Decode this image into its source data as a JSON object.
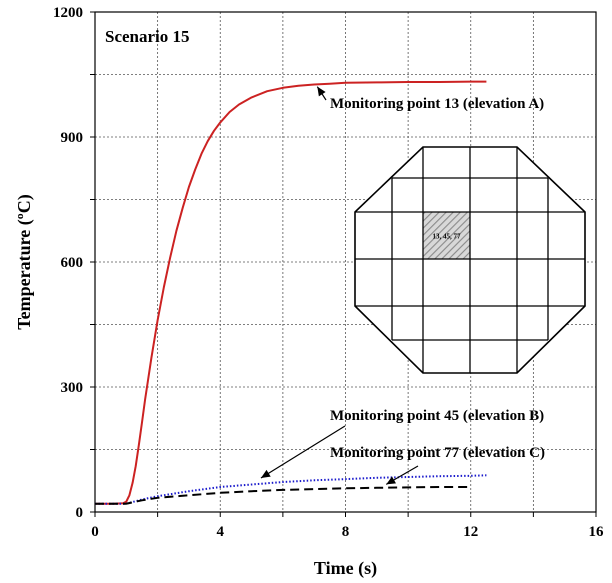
{
  "chart_data": {
    "type": "line",
    "title": "Scenario 15",
    "xlabel": "Time (s)",
    "ylabel": "Temperature (ºC)",
    "xlim": [
      0,
      16
    ],
    "ylim": [
      0,
      1200
    ],
    "xticks": [
      0,
      4,
      8,
      12,
      16
    ],
    "yticks": [
      0,
      300,
      600,
      900,
      1200
    ],
    "grid": true,
    "series": [
      {
        "name": "Monitoring point 13 (elevation A)",
        "color": "#cc2222",
        "style": "solid",
        "x": [
          0,
          0.6,
          0.9,
          1.0,
          1.1,
          1.2,
          1.3,
          1.4,
          1.5,
          1.6,
          1.8,
          2.0,
          2.2,
          2.4,
          2.6,
          2.8,
          3.0,
          3.2,
          3.4,
          3.6,
          3.8,
          4.0,
          4.3,
          4.6,
          5.0,
          5.5,
          6.0,
          6.5,
          7.0,
          7.5,
          8.0,
          9.0,
          10.0,
          11.0,
          12.0,
          12.5
        ],
        "y": [
          20,
          20,
          21,
          25,
          40,
          70,
          110,
          160,
          215,
          270,
          370,
          460,
          540,
          610,
          675,
          730,
          780,
          822,
          860,
          890,
          915,
          935,
          960,
          978,
          995,
          1010,
          1018,
          1023,
          1026,
          1028,
          1030,
          1031,
          1032,
          1032,
          1033,
          1033
        ]
      },
      {
        "name": "Monitoring point 45 (elevation B)",
        "color": "#1a1acc",
        "style": "dotted",
        "x": [
          0,
          1.0,
          1.5,
          2.0,
          2.5,
          3.0,
          3.5,
          4.0,
          5.0,
          6.0,
          7.0,
          8.0,
          9.0,
          10.0,
          11.0,
          12.0,
          12.5
        ],
        "y": [
          20,
          20,
          30,
          38,
          44,
          50,
          55,
          60,
          66,
          72,
          76,
          79,
          82,
          84,
          86,
          87,
          88
        ]
      },
      {
        "name": "Monitoring point 77 (elevation C)",
        "color": "#000000",
        "style": "dashed",
        "x": [
          0,
          1.0,
          1.5,
          2.0,
          3.0,
          4.0,
          5.0,
          6.0,
          7.0,
          8.0,
          9.0,
          10.0,
          11.0,
          12.0
        ],
        "y": [
          20,
          20,
          28,
          34,
          40,
          46,
          50,
          53,
          55,
          57,
          58,
          59,
          60,
          60
        ]
      }
    ],
    "annotations": [
      {
        "text": "Monitoring point 13 (elevation A)",
        "series": 0
      },
      {
        "text": "Monitoring point 45 (elevation B)",
        "series": 1
      },
      {
        "text": "Monitoring point 77 (elevation C)",
        "series": 2
      }
    ],
    "inset": {
      "shape": "octagonal cross-section grid",
      "highlighted_cell_label": "13, 45, 77"
    }
  }
}
